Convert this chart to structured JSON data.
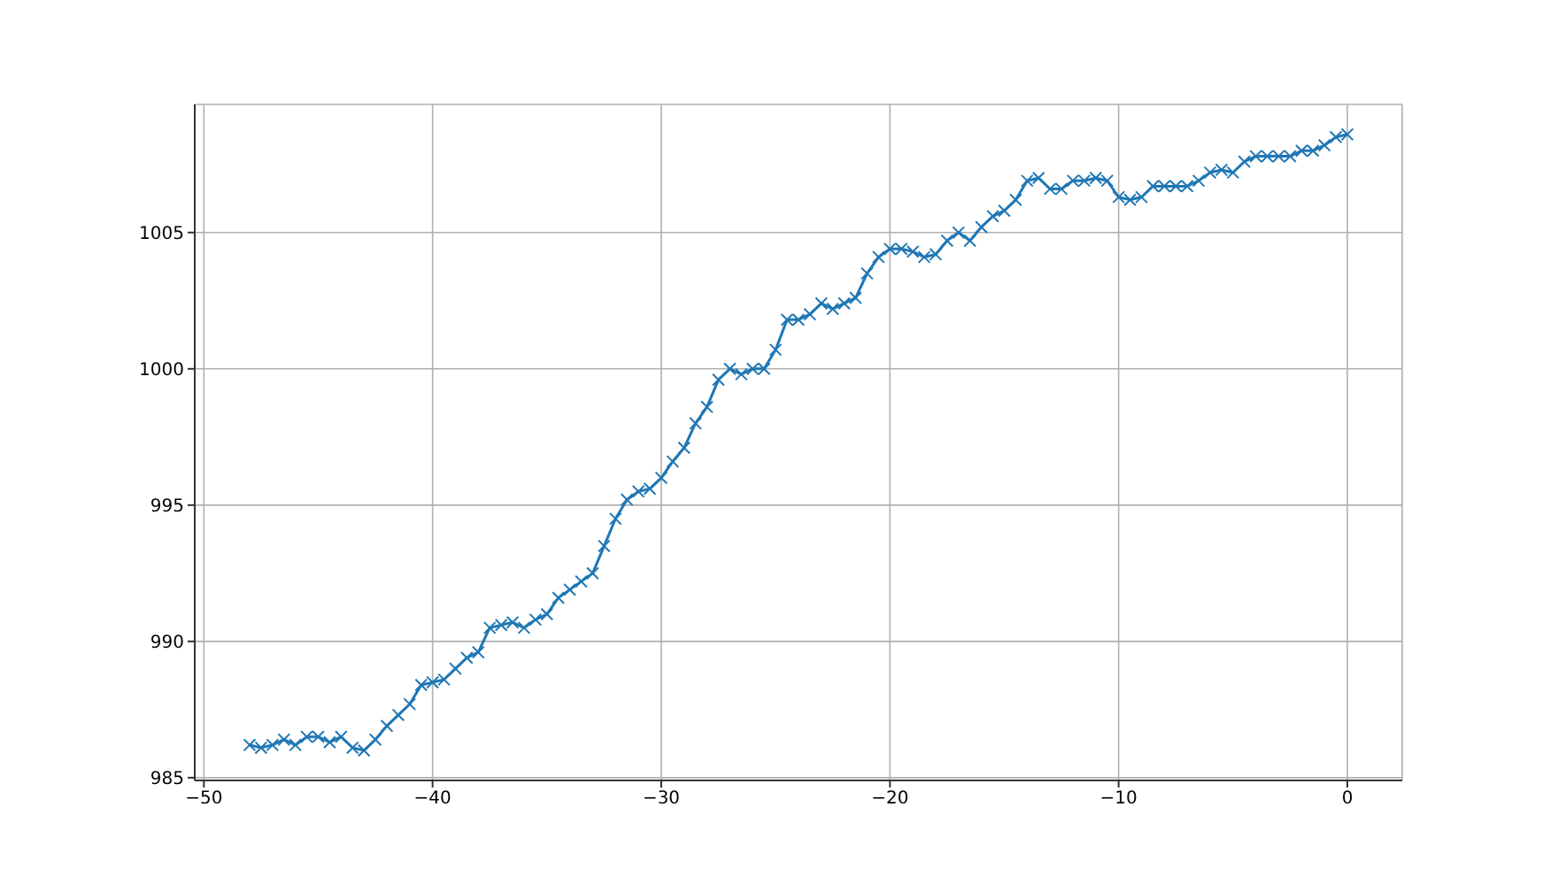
{
  "chart_data": {
    "type": "line",
    "x": [
      -48,
      -47.5,
      -47,
      -46.5,
      -46,
      -45.5,
      -45,
      -44.5,
      -44,
      -43.5,
      -43,
      -42.5,
      -42,
      -41.5,
      -41,
      -40.5,
      -40,
      -39.5,
      -39,
      -38.5,
      -38,
      -37.5,
      -37,
      -36.5,
      -36,
      -35.5,
      -35,
      -34.5,
      -34,
      -33.5,
      -33,
      -32.5,
      -32,
      -31.5,
      -31,
      -30.5,
      -30,
      -29.5,
      -29,
      -28.5,
      -28,
      -27.5,
      -27,
      -26.5,
      -26,
      -25.5,
      -25,
      -24.5,
      -24,
      -23.5,
      -23,
      -22.5,
      -22,
      -21.5,
      -21,
      -20.5,
      -20,
      -19.5,
      -19,
      -18.5,
      -18,
      -17.5,
      -17,
      -16.5,
      -16,
      -15.5,
      -15,
      -14.5,
      -14,
      -13.5,
      -13,
      -12.5,
      -12,
      -11.5,
      -11,
      -10.5,
      -10,
      -9.5,
      -9,
      -8.5,
      -8,
      -7.5,
      -7,
      -6.5,
      -6,
      -5.5,
      -5,
      -4.5,
      -4,
      -3.5,
      -3,
      -2.5,
      -2,
      -1.5,
      -1,
      -0.5,
      0
    ],
    "series": [
      {
        "color": "#1f77b4",
        "values": [
          986.2,
          986.1,
          986.2,
          986.4,
          986.2,
          986.5,
          986.5,
          986.3,
          986.5,
          986.1,
          986.0,
          986.4,
          986.9,
          987.3,
          987.7,
          988.4,
          988.5,
          988.6,
          989.0,
          989.4,
          989.6,
          990.5,
          990.6,
          990.7,
          990.5,
          990.8,
          991.0,
          991.6,
          991.9,
          992.2,
          992.5,
          993.5,
          994.5,
          995.2,
          995.5,
          995.6,
          996.0,
          996.6,
          997.1,
          998.0,
          998.6,
          999.6,
          1000.0,
          999.8,
          1000.0,
          1000.0,
          1000.7,
          1001.8,
          1001.8,
          1002.0,
          1002.4,
          1002.2,
          1002.4,
          1002.6,
          1003.5,
          1004.1,
          1004.4,
          1004.4,
          1004.3,
          1004.1,
          1004.2,
          1004.7,
          1005.0,
          1004.7,
          1005.2,
          1005.6,
          1005.8,
          1006.2,
          1006.9,
          1007.0,
          1006.6,
          1006.6,
          1006.9,
          1006.9,
          1007.0,
          1006.9,
          1006.3,
          1006.2,
          1006.3,
          1006.7,
          1006.7,
          1006.7,
          1006.7,
          1006.9,
          1007.2,
          1007.3,
          1007.2,
          1007.6,
          1007.8,
          1007.8,
          1007.8,
          1007.8,
          1008.0,
          1008.0,
          1008.2,
          1008.5,
          1008.6
        ]
      }
    ],
    "xlim": [
      -50.4,
      2.4
    ],
    "ylim": [
      984.9,
      1009.7
    ],
    "xticks": [
      {
        "value": -50,
        "label": "−50"
      },
      {
        "value": -40,
        "label": "−40"
      },
      {
        "value": -30,
        "label": "−30"
      },
      {
        "value": -20,
        "label": "−20"
      },
      {
        "value": -10,
        "label": "−10"
      },
      0
    ],
    "yticks": [
      985,
      990,
      995,
      1000,
      1005
    ],
    "grid": true,
    "marker": "cross",
    "line_style": "solid"
  }
}
